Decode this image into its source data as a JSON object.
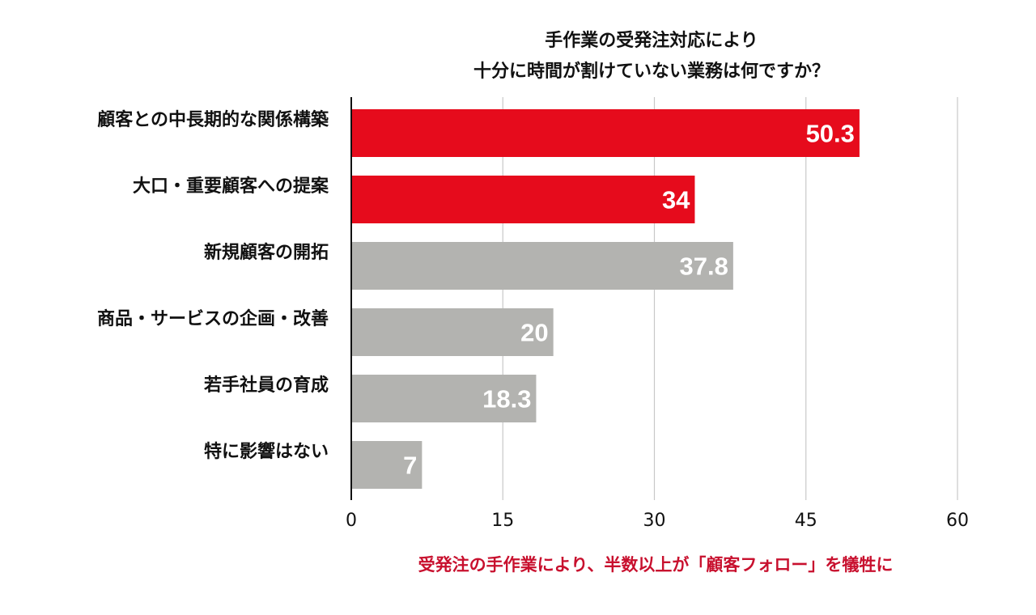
{
  "colors": {
    "highlight": "#e60b1c",
    "normal": "#b3b3b0",
    "caption": "#c8102e",
    "grid": "#c8c8c8",
    "axis": "#111111",
    "text": "#111111",
    "bar_label": "#ffffff"
  },
  "chart_data": {
    "type": "bar",
    "orientation": "horizontal",
    "title_lines": [
      "手作業の受発注対応により",
      "十分に時間が割けていない業務は何ですか？"
    ],
    "categories": [
      "顧客との中長期的な関係構築",
      "大口・重要顧客への提案",
      "新規顧客の開拓",
      "商品・サービスの企画・改善",
      "若手社員の育成",
      "特に影響はない"
    ],
    "values": [
      50.3,
      34,
      37.8,
      20,
      18.3,
      7
    ],
    "value_labels": [
      "50.3",
      "34",
      "37.8",
      "20",
      "18.3",
      "7"
    ],
    "highlighted": [
      true,
      true,
      false,
      false,
      false,
      false
    ],
    "xlim": [
      0,
      60
    ],
    "xticks": [
      "0",
      "15",
      "30",
      "45",
      "60"
    ],
    "xtick_values": [
      0,
      15,
      30,
      45,
      60
    ],
    "grid": true,
    "caption": "受発注の手作業により、半数以上が「顧客フォロー」を犠牲に"
  }
}
